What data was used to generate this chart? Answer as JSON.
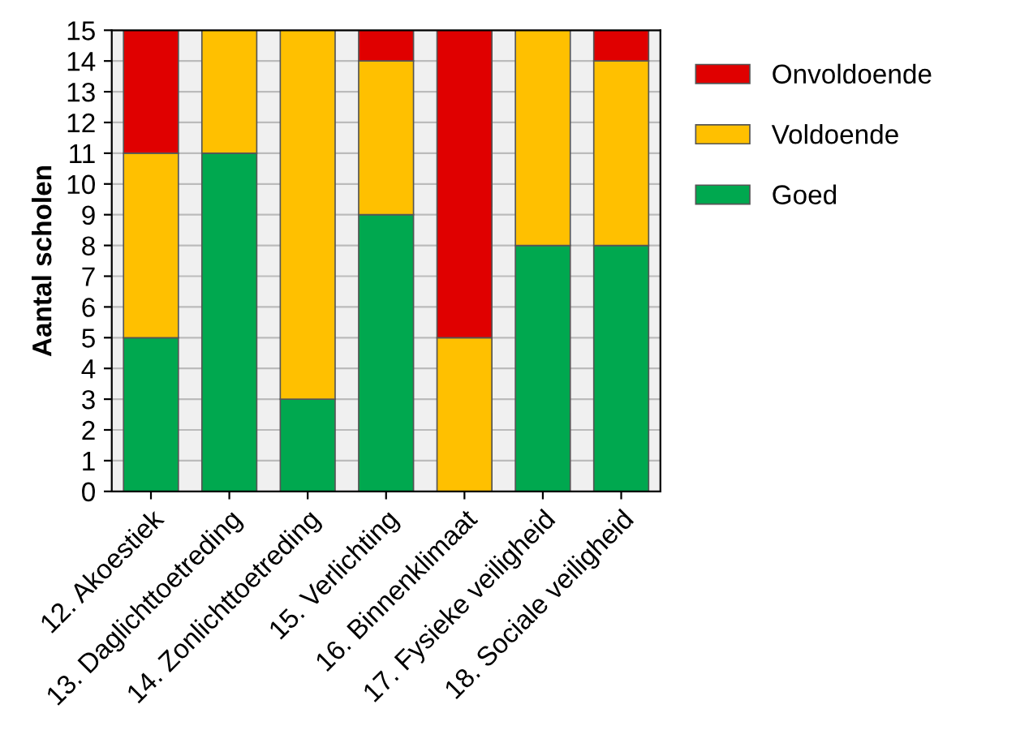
{
  "chart_data": {
    "type": "bar",
    "stacked": true,
    "ylabel": "Aantal scholen",
    "categories": [
      "12. Akoestiek",
      "13. Daglichttoetreding",
      "14. Zonlichttoetreding",
      "15. Verlichting",
      "16. Binnenklimaat",
      "17. Fysieke veiligheid",
      "18. Sociale veiligheid"
    ],
    "series": [
      {
        "name": "Goed",
        "color": "#00a84f",
        "values": [
          5,
          11,
          3,
          9,
          0,
          8,
          8
        ]
      },
      {
        "name": "Voldoende",
        "color": "#ffc000",
        "values": [
          6,
          4,
          12,
          5,
          5,
          7,
          6
        ]
      },
      {
        "name": "Onvoldoende",
        "color": "#e00000",
        "values": [
          4,
          0,
          0,
          1,
          10,
          0,
          1
        ]
      }
    ],
    "ylim": [
      0,
      15
    ],
    "yticks": [
      0,
      1,
      2,
      3,
      4,
      5,
      6,
      7,
      8,
      9,
      10,
      11,
      12,
      13,
      14,
      15
    ],
    "grid": "y",
    "legend": "right"
  }
}
